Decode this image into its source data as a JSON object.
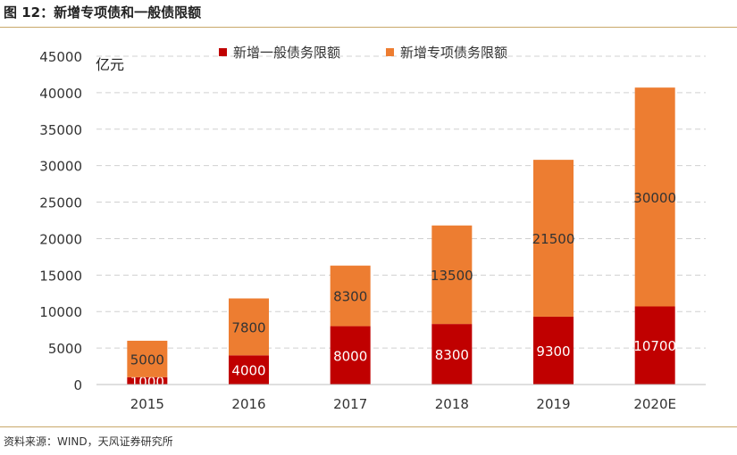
{
  "figure": {
    "title": "图 12：新增专项债和一般债限额",
    "source": "资料来源：WIND，天风证券研究所"
  },
  "chart_data": {
    "type": "bar",
    "stacked": true,
    "categories": [
      "2015",
      "2016",
      "2017",
      "2018",
      "2019",
      "2020E"
    ],
    "series": [
      {
        "name": "新增一般债务限额",
        "values": [
          1000,
          4000,
          8000,
          8300,
          9300,
          10700
        ],
        "color": "#c00000"
      },
      {
        "name": "新增专项债务限额",
        "values": [
          5000,
          7800,
          8300,
          13500,
          21500,
          30000
        ],
        "color": "#ed7d31"
      }
    ],
    "ylabel": "亿元",
    "ylim": [
      0,
      45000
    ],
    "yticks": [
      0,
      5000,
      10000,
      15000,
      20000,
      25000,
      30000,
      35000,
      40000,
      45000
    ],
    "grid": true,
    "legend_position": "top-center"
  }
}
